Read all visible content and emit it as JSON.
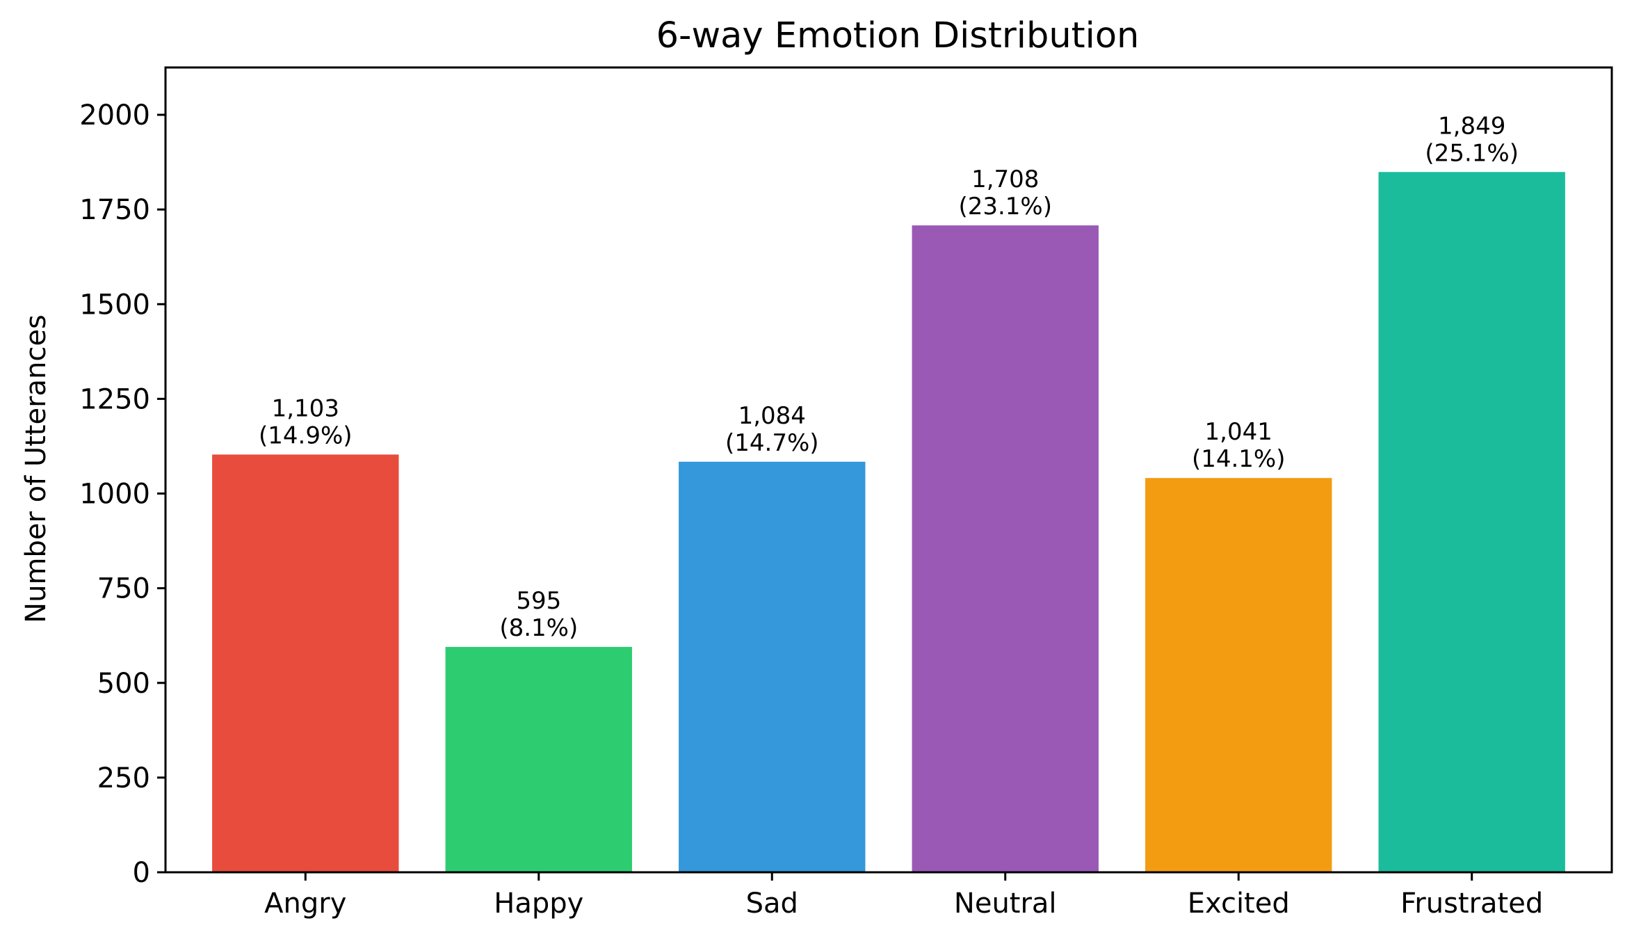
{
  "chart_data": {
    "type": "bar",
    "title": "6-way Emotion Distribution",
    "xlabel": "",
    "ylabel": "Number of Utterances",
    "categories": [
      "Angry",
      "Happy",
      "Sad",
      "Neutral",
      "Excited",
      "Frustrated"
    ],
    "values": [
      1103,
      595,
      1084,
      1708,
      1041,
      1849
    ],
    "value_labels": [
      "1,103",
      "595",
      "1,084",
      "1,708",
      "1,041",
      "1,849"
    ],
    "percent_labels": [
      "(14.9%)",
      "(8.1%)",
      "(14.7%)",
      "(23.1%)",
      "(14.1%)",
      "(25.1%)"
    ],
    "colors": [
      "#e74c3c",
      "#2ecc71",
      "#3498db",
      "#9b59b6",
      "#f39c12",
      "#1abc9c"
    ],
    "ylim": [
      0,
      2125
    ],
    "yticks": [
      0,
      250,
      500,
      750,
      1000,
      1250,
      1500,
      1750,
      2000
    ],
    "grid": false,
    "legend": "none"
  }
}
